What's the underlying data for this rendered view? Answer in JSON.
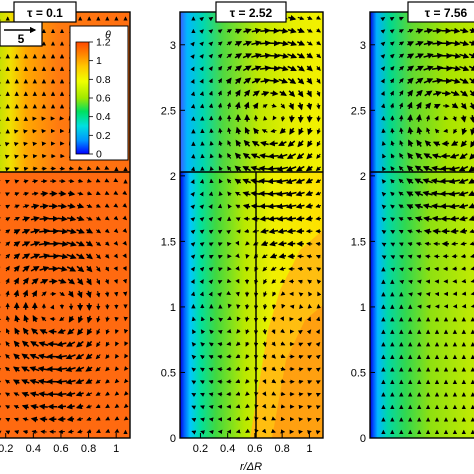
{
  "chart_data": [
    {
      "type": "heatmap",
      "panel": "left",
      "title": "τ = 0.1",
      "scale_arrow_label": "5",
      "x_ticks": [
        "0.2",
        "0.4",
        "0.6",
        "0.8",
        "1"
      ],
      "xlim": [
        0.05,
        1.1
      ],
      "ylim": [
        0,
        3.25
      ],
      "interface_y": 2.0,
      "field": "mostly ~1.1 (orange); warmer yellow/green strip near the left edge in the upper section",
      "vortices": [
        {
          "cx": 0.55,
          "cy": 1.0,
          "direction": "clockwise"
        }
      ],
      "colorbar": {
        "label": "θ",
        "ticks": [
          "1.2",
          "1",
          "0.8",
          "0.6",
          "0.4",
          "0.2",
          "0"
        ],
        "range": [
          0,
          1.2
        ],
        "colors": [
          "#0000ff",
          "#0094ff",
          "#00e0e0",
          "#00e060",
          "#a0e800",
          "#f0ff00",
          "#ffc800",
          "#ff8000",
          "#ff4800"
        ]
      }
    },
    {
      "type": "heatmap",
      "panel": "middle",
      "title": "τ = 2.52",
      "xlabel": "r/ΔR",
      "x_ticks": [
        "0.2",
        "0.4",
        "0.6",
        "0.8",
        "1"
      ],
      "y_ticks": [
        "0",
        "0.5",
        "1",
        "1.5",
        "2",
        "2.5",
        "3"
      ],
      "xlim": [
        0.05,
        1.1
      ],
      "ylim": [
        0,
        3.25
      ],
      "interface_y": 2.0,
      "interface_x": 0.6,
      "field": "radial gradient: blue near r=0.1, green to yellow toward r=1; orange region lower right",
      "vortices": [
        {
          "cx": 0.72,
          "cy": 2.45,
          "direction": "clockwise",
          "strength": "strong"
        },
        {
          "cx": 0.45,
          "cy": 1.0,
          "direction": "clockwise",
          "strength": "weak"
        },
        {
          "cx": 0.8,
          "cy": 1.0,
          "direction": "counterclockwise",
          "strength": "weak"
        }
      ]
    },
    {
      "type": "heatmap",
      "panel": "right",
      "title": "τ = 7.56",
      "y_ticks": [
        "0",
        "0.5",
        "1",
        "1.5",
        "2",
        "2.5",
        "3"
      ],
      "xlim": [
        0.05,
        1.1
      ],
      "ylim": [
        0,
        3.25
      ],
      "interface_y": 2.0,
      "field": "blue near left edge, green through yellow-green toward right",
      "vortices": [
        {
          "cx": 0.6,
          "cy": 2.4,
          "direction": "clockwise",
          "strength": "strong"
        }
      ]
    }
  ]
}
